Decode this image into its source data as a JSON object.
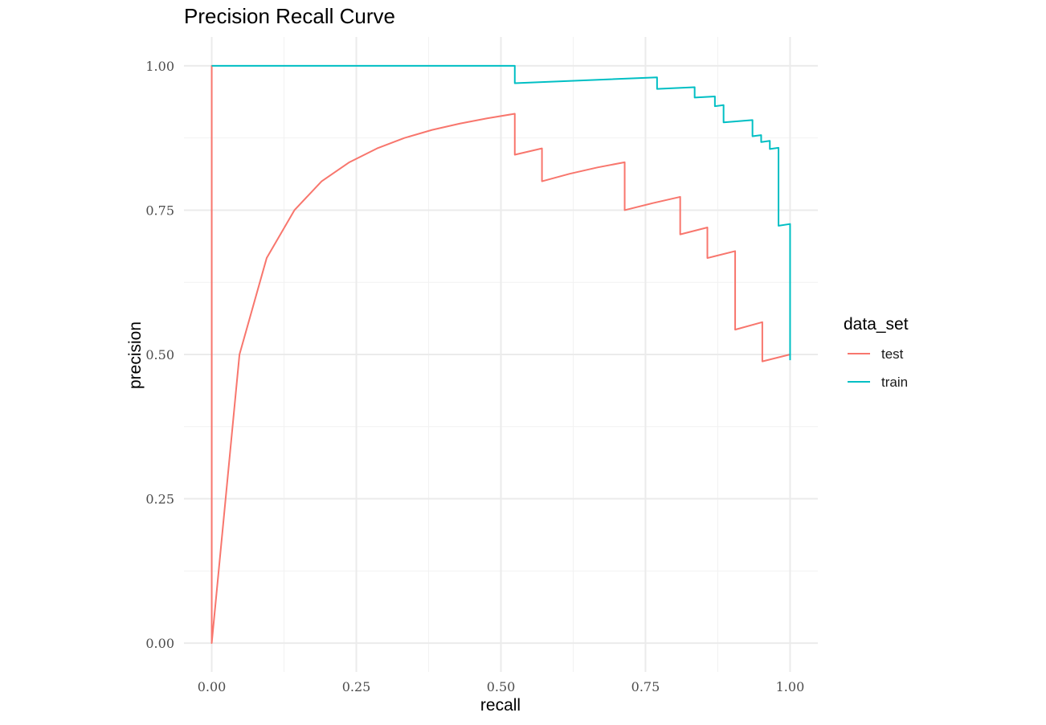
{
  "chart_data": {
    "type": "line",
    "title": "Precision Recall Curve",
    "xlabel": "recall",
    "ylabel": "precision",
    "xlim": [
      -0.048,
      1.048
    ],
    "ylim": [
      -0.05,
      1.05
    ],
    "x_ticks": [
      0.0,
      0.25,
      0.5,
      0.75,
      1.0
    ],
    "x_tick_labels": [
      "0.00",
      "0.25",
      "0.50",
      "0.75",
      "1.00"
    ],
    "y_ticks": [
      0.0,
      0.25,
      0.5,
      0.75,
      1.0
    ],
    "y_tick_labels": [
      "0.00",
      "0.25",
      "0.50",
      "0.75",
      "1.00"
    ],
    "grid": true,
    "legend": {
      "title": "data_set",
      "position": "right"
    },
    "series": [
      {
        "name": "test",
        "color": "#F8766D",
        "points": [
          [
            0.0,
            0.0
          ],
          [
            0.0,
            1.0
          ],
          [
            0.0,
            0.0
          ],
          [
            0.048,
            0.5
          ],
          [
            0.095,
            0.667
          ],
          [
            0.143,
            0.75
          ],
          [
            0.19,
            0.8
          ],
          [
            0.238,
            0.833
          ],
          [
            0.286,
            0.857
          ],
          [
            0.333,
            0.875
          ],
          [
            0.381,
            0.889
          ],
          [
            0.429,
            0.9
          ],
          [
            0.476,
            0.909
          ],
          [
            0.524,
            0.917
          ],
          [
            0.524,
            0.846
          ],
          [
            0.571,
            0.857
          ],
          [
            0.571,
            0.8
          ],
          [
            0.619,
            0.813
          ],
          [
            0.667,
            0.824
          ],
          [
            0.714,
            0.833
          ],
          [
            0.714,
            0.75
          ],
          [
            0.762,
            0.762
          ],
          [
            0.81,
            0.773
          ],
          [
            0.81,
            0.708
          ],
          [
            0.857,
            0.72
          ],
          [
            0.857,
            0.667
          ],
          [
            0.905,
            0.679
          ],
          [
            0.905,
            0.543
          ],
          [
            0.952,
            0.556
          ],
          [
            0.952,
            0.488
          ],
          [
            1.0,
            0.5
          ]
        ]
      },
      {
        "name": "train",
        "color": "#00BFC4",
        "points": [
          [
            0.0,
            1.0
          ],
          [
            0.524,
            1.0
          ],
          [
            0.524,
            0.97
          ],
          [
            0.77,
            0.98
          ],
          [
            0.77,
            0.96
          ],
          [
            0.835,
            0.963
          ],
          [
            0.835,
            0.945
          ],
          [
            0.87,
            0.947
          ],
          [
            0.87,
            0.93
          ],
          [
            0.885,
            0.932
          ],
          [
            0.885,
            0.902
          ],
          [
            0.935,
            0.906
          ],
          [
            0.935,
            0.878
          ],
          [
            0.95,
            0.88
          ],
          [
            0.95,
            0.868
          ],
          [
            0.965,
            0.87
          ],
          [
            0.965,
            0.856
          ],
          [
            0.98,
            0.858
          ],
          [
            0.98,
            0.723
          ],
          [
            1.0,
            0.726
          ],
          [
            1.0,
            0.49
          ]
        ]
      }
    ]
  }
}
